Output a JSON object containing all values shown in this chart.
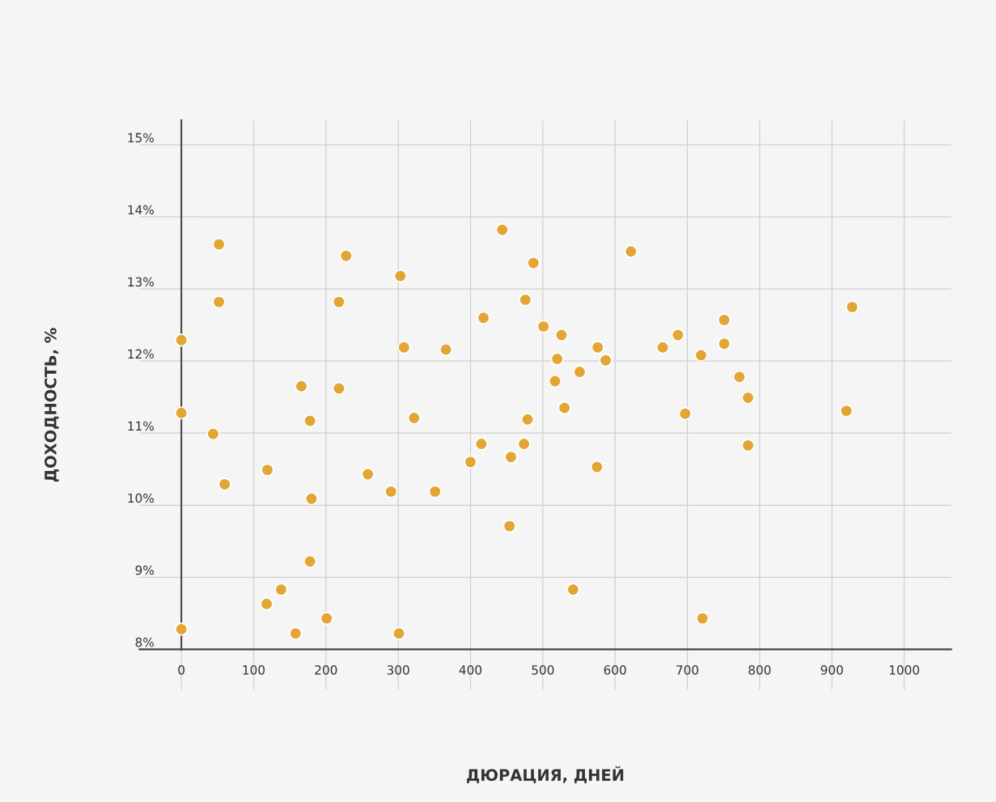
{
  "chart_data": {
    "type": "scatter",
    "xlabel": "ДЮРАЦИЯ, ДНЕЙ",
    "ylabel": "ДОХОДНОСТЬ, %",
    "x": [
      0,
      0,
      0,
      52,
      52,
      44,
      60,
      119,
      118,
      138,
      158,
      166,
      178,
      180,
      178,
      201,
      218,
      218,
      228,
      258,
      290,
      303,
      301,
      308,
      322,
      351,
      366,
      400,
      415,
      418,
      444,
      456,
      454,
      476,
      474,
      479,
      487,
      501,
      517,
      520,
      526,
      530,
      542,
      551,
      576,
      575,
      587,
      622,
      666,
      687,
      697,
      719,
      721,
      751,
      751,
      772,
      784,
      784,
      920,
      928
    ],
    "series": [
      {
        "color": "#e3a533",
        "values": [
          12.29,
          11.28,
          8.28,
          13.62,
          12.82,
          10.99,
          10.29,
          10.49,
          8.63,
          8.83,
          8.22,
          11.65,
          11.17,
          10.09,
          9.22,
          8.43,
          12.82,
          11.62,
          13.46,
          10.43,
          10.19,
          13.18,
          8.22,
          12.19,
          11.21,
          10.19,
          12.16,
          10.6,
          10.85,
          12.6,
          13.82,
          10.67,
          9.71,
          12.85,
          10.85,
          11.19,
          13.36,
          12.48,
          11.72,
          12.03,
          12.36,
          11.35,
          8.83,
          11.85,
          12.19,
          10.53,
          12.01,
          13.52,
          12.19,
          12.36,
          11.27,
          12.08,
          8.43,
          12.57,
          12.24,
          11.78,
          11.49,
          10.83,
          11.31,
          12.75
        ]
      }
    ],
    "xlim": [
      -58,
      1065
    ],
    "ylim": [
      7.44,
      15.34
    ],
    "xticks": [
      0,
      100,
      200,
      300,
      400,
      500,
      600,
      700,
      800,
      900,
      1000
    ],
    "yticks": [
      {
        "value": 8,
        "label": "8%"
      },
      {
        "value": 9,
        "label": "9%"
      },
      {
        "value": 10,
        "label": "10%"
      },
      {
        "value": 11,
        "label": "11%"
      },
      {
        "value": 12,
        "label": "12%"
      },
      {
        "value": 13,
        "label": "13%"
      },
      {
        "value": 14,
        "label": "14%"
      },
      {
        "value": 15,
        "label": "15%"
      }
    ],
    "grid": true,
    "marker": "circle",
    "legend": false
  }
}
